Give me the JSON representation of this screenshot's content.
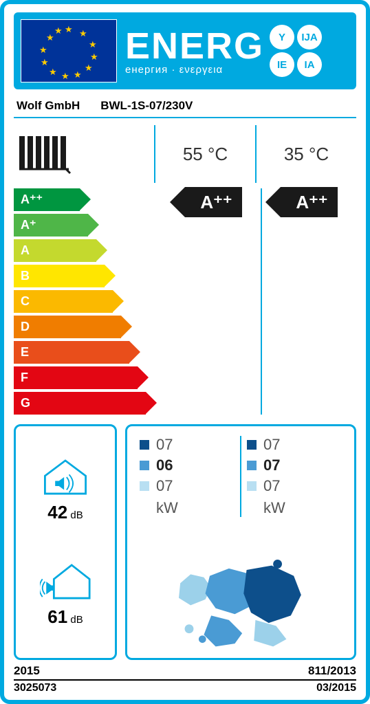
{
  "header": {
    "title": "ENERG",
    "subtitle": "енергия · ενεργεια",
    "badges": [
      "Y",
      "IJA",
      "IE",
      "IA"
    ],
    "eu_flag_bg": "#003399",
    "eu_star_color": "#ffcc00",
    "header_bg": "#00a9e0"
  },
  "identity": {
    "manufacturer": "Wolf GmbH",
    "model": "BWL-1S-07/230V"
  },
  "temps": {
    "high": "55 °C",
    "low": "35 °C"
  },
  "scale": {
    "classes": [
      "A⁺⁺",
      "A⁺",
      "A",
      "B",
      "C",
      "D",
      "E",
      "F",
      "G"
    ],
    "colors": [
      "#009640",
      "#4fb648",
      "#c4d92e",
      "#ffe600",
      "#fbb900",
      "#f07d00",
      "#e94e1b",
      "#e30613",
      "#e30613"
    ],
    "widths": [
      96,
      108,
      120,
      132,
      144,
      156,
      168,
      180,
      192
    ]
  },
  "ratings": {
    "high": "A⁺⁺",
    "low": "A⁺⁺",
    "pointer_bg": "#1a1a1a"
  },
  "sound": {
    "indoor_db": "42",
    "outdoor_db": "61",
    "unit": "dB",
    "stroke": "#00a9e0"
  },
  "power": {
    "kw_label": "kW",
    "square_colors": [
      "#0d4f8b",
      "#4a9bd4",
      "#b8dff2"
    ],
    "high": {
      "vals": [
        "07",
        "06",
        "07"
      ],
      "bold_index": 1
    },
    "low": {
      "vals": [
        "07",
        "07",
        "07"
      ],
      "bold_index": 1
    }
  },
  "europe_colors": {
    "dark": "#0d4f8b",
    "mid": "#4a9bd4",
    "light": "#9cd1ea"
  },
  "footer": {
    "year": "2015",
    "regulation": "811/2013",
    "partno": "3025073",
    "date": "03/2015"
  },
  "border_color": "#00a9e0"
}
